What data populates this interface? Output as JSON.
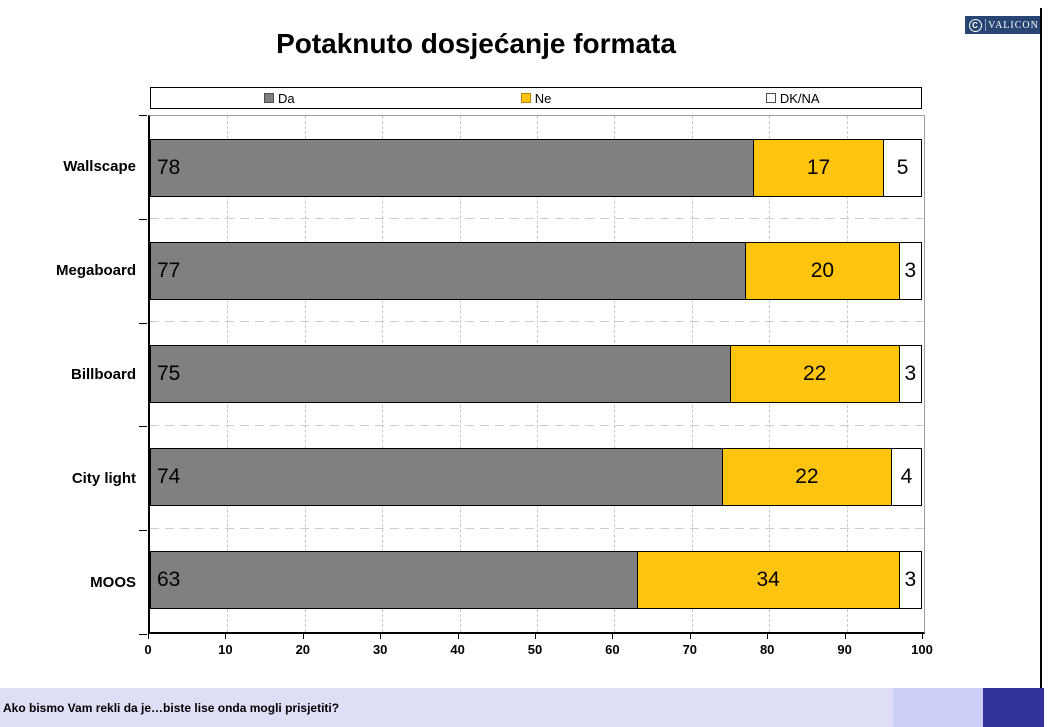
{
  "slide_title": "Potaknuto dosjećanje formata",
  "logo": {
    "brand": "VALICON",
    "monogram": "C"
  },
  "footer": {
    "question": "Ako bismo Vam rekli da je…biste lise onda mogli prisjetiti?"
  },
  "colors": {
    "da_gray": "#808080",
    "ne_yellow": "#FFC40D",
    "dkna_white": "#FFFFFF",
    "logo_navy": "#274472",
    "footer_lavender": "#DEDEF7",
    "footer_mid_lavender": "#CCCFF5",
    "footer_indigo": "#333399"
  },
  "chart_data": {
    "type": "bar",
    "orientation": "horizontal",
    "stacked": true,
    "title": "Potaknuto dosjećanje formata",
    "categories": [
      "Wallscape",
      "Megaboard",
      "Billboard",
      "City light",
      "MOOS"
    ],
    "series": [
      {
        "name": "Da",
        "color": "#808080",
        "swatch_border": "#4d4d4d",
        "values": [
          78,
          77,
          75,
          74,
          63
        ]
      },
      {
        "name": "Ne",
        "color": "#FFC40D",
        "swatch_border": "#B8860B",
        "values": [
          17,
          20,
          22,
          22,
          34
        ]
      },
      {
        "name": "DK/NA",
        "color": "#FFFFFF",
        "swatch_border": "#4d4d4d",
        "values": [
          5,
          3,
          3,
          4,
          3
        ]
      }
    ],
    "xlim": [
      0,
      100
    ],
    "x_ticks": [
      0,
      10,
      20,
      30,
      40,
      50,
      60,
      70,
      80,
      90,
      100
    ],
    "legend_position": "top",
    "gridlines": "dashed",
    "value_labels": "inside"
  }
}
